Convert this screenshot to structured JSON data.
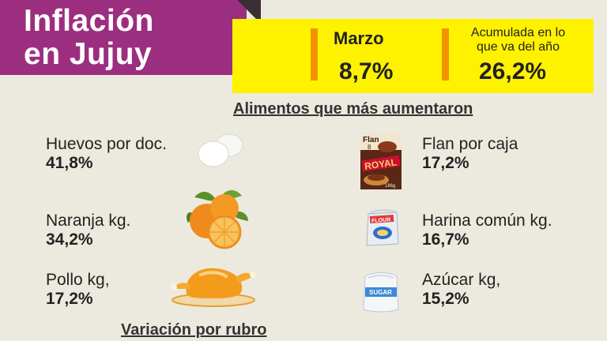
{
  "header": {
    "title_line1": "Inflación",
    "title_line2": "en Jujuy"
  },
  "stats": {
    "monthly_label": "Marzo",
    "monthly_value": "8,7%",
    "accumulated_label_line1": "Acumulada en lo",
    "accumulated_label_line2": "que va del año",
    "accumulated_value": "26,2%"
  },
  "section_title": "Alimentos que más aumentaron",
  "items": [
    {
      "name": "Huevos por doc.",
      "value": "41,8%",
      "icon": "eggs-icon"
    },
    {
      "name": "Naranja kg.",
      "value": "34,2%",
      "icon": "orange-icon"
    },
    {
      "name": "Pollo kg,",
      "value": "17,2%",
      "icon": "chicken-icon"
    },
    {
      "name": "Flan por caja",
      "value": "17,2%",
      "icon": "flan-box-icon"
    },
    {
      "name": "Harina común kg.",
      "value": "16,7%",
      "icon": "flour-bag-icon"
    },
    {
      "name": "Azúcar kg,",
      "value": "15,2%",
      "icon": "sugar-bag-icon"
    }
  ],
  "footer_title": "Variación por rubro",
  "colors": {
    "title_bg": "#9c2e7f",
    "stats_bg": "#fff200",
    "accent_bar": "#f39200",
    "page_bg": "#eceadf"
  },
  "icon_text": {
    "flan_box": "Flan",
    "flan_box_number": "8",
    "flan_box_brand": "ROYAL",
    "flan_box_weight": "186g",
    "flour_bag": "FLOUR",
    "sugar_bag": "SUGAR"
  }
}
